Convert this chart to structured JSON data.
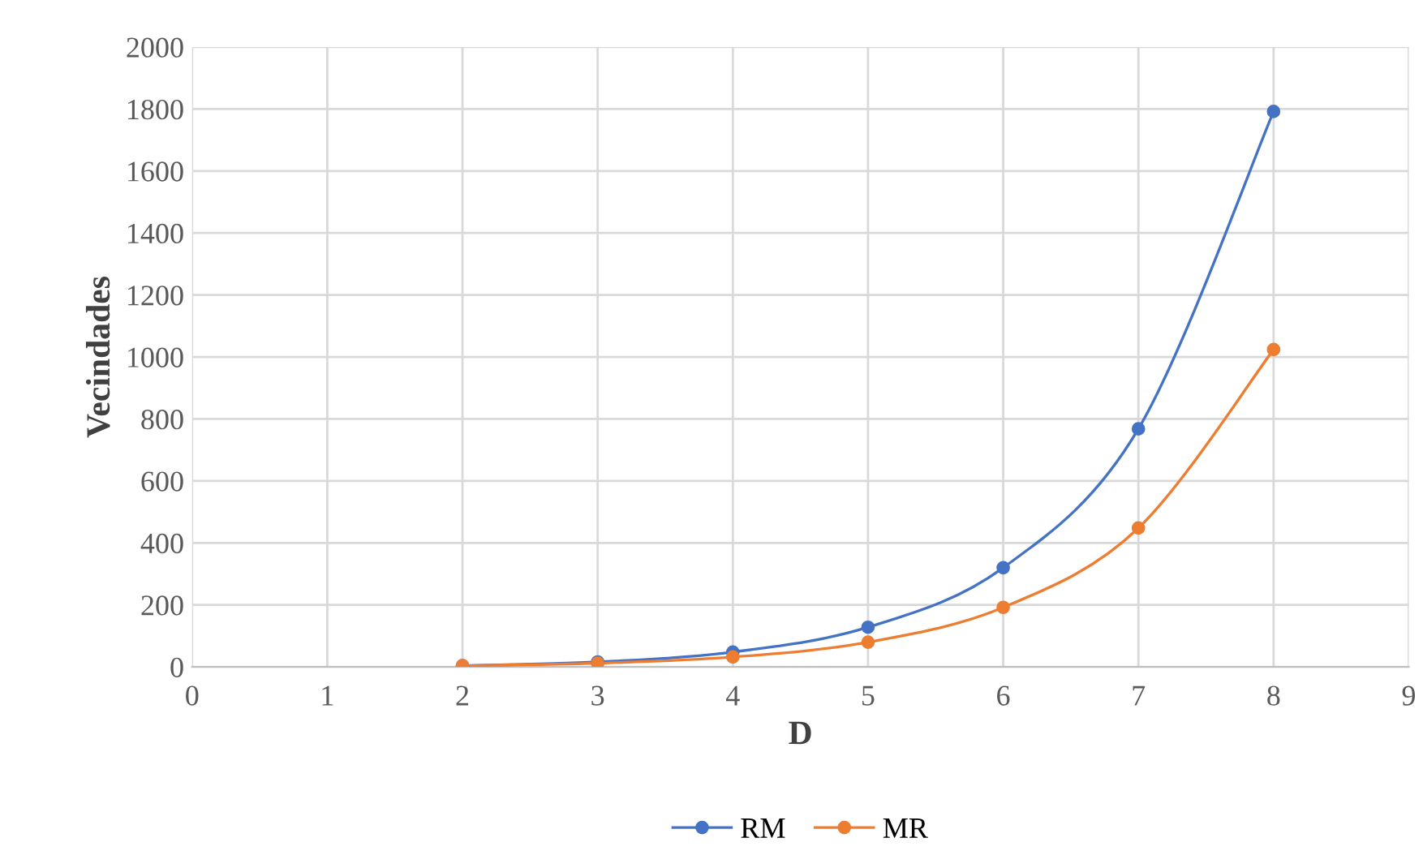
{
  "chart_data": {
    "type": "line",
    "xlabel": "D",
    "ylabel": "Vecindades",
    "x": [
      2,
      3,
      4,
      5,
      6,
      7,
      8
    ],
    "series": [
      {
        "name": "RM",
        "color": "#4472c4",
        "values": [
          4,
          16,
          48,
          128,
          320,
          768,
          1792
        ]
      },
      {
        "name": "MR",
        "color": "#ed7d31",
        "values": [
          4,
          12,
          32,
          80,
          192,
          448,
          1024
        ]
      }
    ],
    "xlim": [
      0,
      9
    ],
    "xticks": [
      0,
      1,
      2,
      3,
      4,
      5,
      6,
      7,
      8,
      9
    ],
    "ylim": [
      0,
      2000
    ],
    "yticks": [
      0,
      200,
      400,
      600,
      800,
      1000,
      1200,
      1400,
      1600,
      1800,
      2000
    ],
    "grid": true,
    "legend": "bottom",
    "marker": "circle",
    "line_style": "solid"
  }
}
